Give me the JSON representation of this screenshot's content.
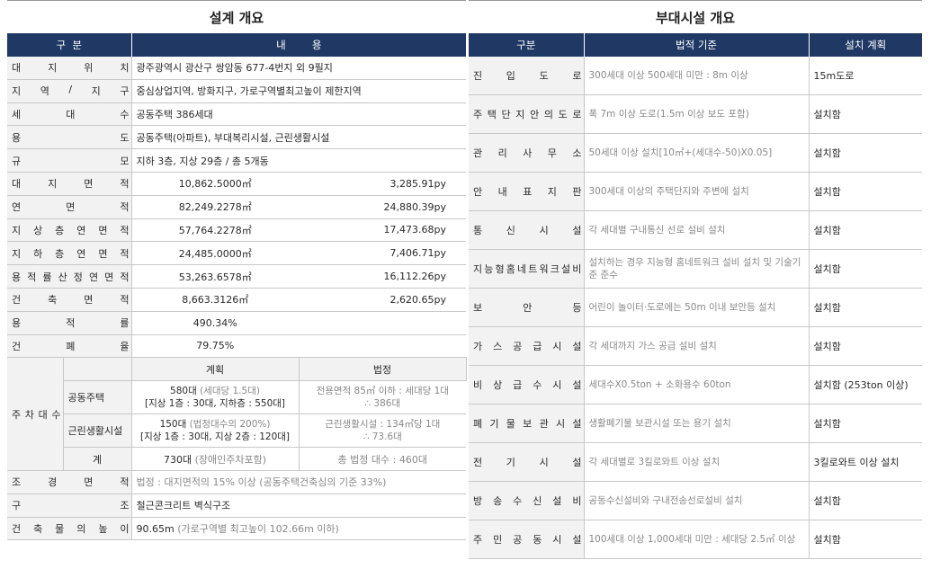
{
  "left": {
    "title": "설계 개요",
    "head": [
      "구  분",
      "내        용"
    ],
    "rows": [
      {
        "label": "대지위치",
        "value": "광주광역시 광산구 쌍암동 677-4번지 외 9필지"
      },
      {
        "label": "지역/지구",
        "value": "중심상업지역, 방화지구, 가로구역별최고높이 제한지역"
      },
      {
        "label": "세대수",
        "value": "공동주택 386세대"
      },
      {
        "label": "용도",
        "value": "공동주택(아파트), 부대복리시설, 근린생활시설"
      },
      {
        "label": "규모",
        "value": "지하 3층, 지상 29층 / 총 5개동"
      }
    ],
    "area_rows": [
      {
        "label": "대지면적",
        "m2": "10,862.5000㎡",
        "py": "3,285.91py"
      },
      {
        "label": "연면적",
        "m2": "82,249.2278㎡",
        "py": "24,880.39py"
      },
      {
        "label": "지상층 연면적",
        "m2": "57,764.2278㎡",
        "py": "17,473.68py"
      },
      {
        "label": "지하층 연면적",
        "m2": "24,485.0000㎡",
        "py": "7,406.71py"
      },
      {
        "label": "용적률산정 연면적",
        "m2": "53,263.6578㎡",
        "py": "16,112.26py"
      },
      {
        "label": "건축면적",
        "m2": "8,663.3126㎡",
        "py": "2,620.65py"
      }
    ],
    "ratio_rows": [
      {
        "label": "용적률",
        "value": "490.34%"
      },
      {
        "label": "건폐율",
        "value": "79.75%"
      }
    ],
    "parking": {
      "label": "주차대수",
      "col_plan": "계획",
      "col_law": "법정",
      "housing_label": "공동주택",
      "housing_plan_a": "580대 ",
      "housing_plan_note": "(세대당 1.5대)",
      "housing_plan_b": "[지상 1층 : 30대, 지하층 : 550대]",
      "housing_law": "전용면적 85㎡ 이하 : 세대당 1대",
      "housing_law_b": "∴ 386대",
      "retail_label": "근린생활시설",
      "retail_plan_a": "150대 ",
      "retail_plan_note": "(법정대수의 200%)",
      "retail_plan_b": "[지상 1층 : 30대, 지상 2층 : 120대]",
      "retail_law": "근린생활시설 : 134㎡당 1대",
      "retail_law_b": "∴ 73.6대",
      "total_label": "계",
      "total_plan": "730대 ",
      "total_plan_note": "(장애인주차포함)",
      "total_law": "총 법정 대수 : 460대"
    },
    "bottom_rows": [
      {
        "label": "조경면적",
        "value": "",
        "note": "법정 : 대지면적의 15% 이상 (공동주택건축심의 기준 33%)"
      },
      {
        "label": "구조",
        "value": "철근콘크리트 벽식구조",
        "note": ""
      },
      {
        "label": "건축물의 높이",
        "value": "90.65m ",
        "note": "(가로구역별 최고높이 102.66m 이하)"
      }
    ]
  },
  "right": {
    "title": "부대시설 개요",
    "head": [
      "구분",
      "법적 기준",
      "설치 계획"
    ],
    "rows": [
      {
        "label": "진입도로",
        "std": "300세대 이상 500세대 미만 : 8m 이상",
        "plan": "15m도로"
      },
      {
        "label": "주택단지안의도로",
        "std": "폭 7m 이상 도로(1.5m 이상 보도 포함)",
        "plan": "설치함"
      },
      {
        "label": "관리사무소",
        "std": "50세대 이상 설치[10㎡+(세대수-50)X0.05]",
        "plan": "설치함"
      },
      {
        "label": "안내표지판",
        "std": "300세대 이상의 주택단지와 주변에 설치",
        "plan": "설치함"
      },
      {
        "label": "통신시설",
        "std": "각 세대별 구내통신 선로 설비 설치",
        "plan": "설치함"
      },
      {
        "label": "지능형홈네트워크설비",
        "std": "설치하는 경우 지능형 홈네트워크 설비 설치 및 기술기준 준수",
        "plan": "설치함"
      },
      {
        "label": "보안등",
        "std": "어린이 놀이터·도로에는 50m 이내 보안등 설치",
        "plan": "설치함"
      },
      {
        "label": "가스공급시설",
        "std": "각 세대까지 가스 공급 설비 설치",
        "plan": "설치함"
      },
      {
        "label": "비상급수시설",
        "std": "세대수X0.5ton + 소화용수 60ton",
        "plan": "설치함 (253ton 이상)"
      },
      {
        "label": "폐기물보관시설",
        "std": "생활폐기물 보관시설 또는 용기 설치",
        "plan": "설치함"
      },
      {
        "label": "전기시설",
        "std": "각 세대별로 3킬로와트 이상 설치",
        "plan": "3킬로와트 이상 설치"
      },
      {
        "label": "방송수신설비",
        "std": "공동수신설비와 구내전송선로설비 설치",
        "plan": "설치함"
      },
      {
        "label": "주민공동시설",
        "std": "100세대 이상 1,000세대 미만 : 세대당 2.5㎡ 이상",
        "plan": "설치함"
      }
    ]
  }
}
